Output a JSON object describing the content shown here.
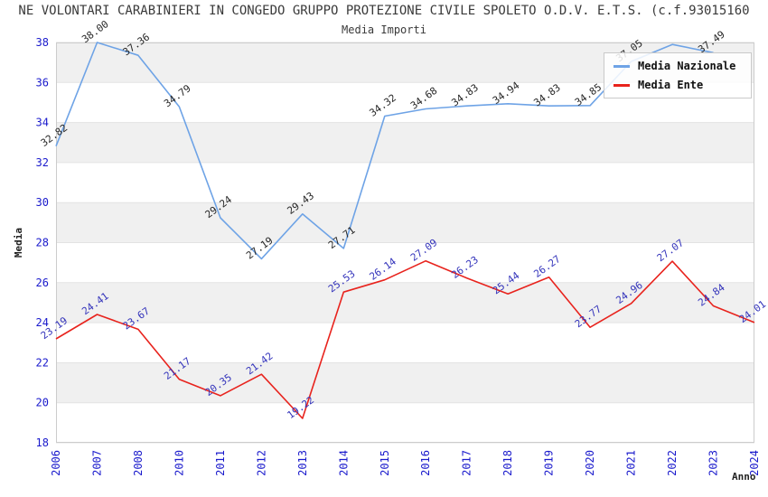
{
  "title": "NE VOLONTARI CARABINIERI IN CONGEDO GRUPPO PROTEZIONE CIVILE SPOLETO O.D.V. E.T.S. (c.f.93015160",
  "subtitle": "Media Importi",
  "axes": {
    "y_label": "Media",
    "x_label": "Anno",
    "y_ticks": [
      "18",
      "20",
      "22",
      "24",
      "26",
      "28",
      "30",
      "32",
      "34",
      "36",
      "38"
    ],
    "tick_color": "#1a1acc"
  },
  "colors": {
    "band": "#f0f0f0",
    "grid": "#e3e3e3",
    "spine": "#cccccc"
  },
  "legend": {
    "items": [
      {
        "label": "Media Nazionale",
        "color": "#6ea3e6"
      },
      {
        "label": "Media Ente",
        "color": "#e8231d"
      }
    ]
  },
  "chart_data": {
    "type": "line",
    "title": "Media Importi",
    "xlabel": "Anno",
    "ylabel": "Media",
    "ylim": [
      18,
      38
    ],
    "grid": "horizontal-bands",
    "legend_position": "top-right",
    "x": [
      "2006",
      "2007",
      "2008",
      "2010",
      "2011",
      "2012",
      "2013",
      "2014",
      "2015",
      "2016",
      "2017",
      "2018",
      "2019",
      "2020",
      "2021",
      "2022",
      "2023",
      "2024"
    ],
    "series": [
      {
        "name": "Media Nazionale",
        "color": "#6ea3e6",
        "label_color": "#262626",
        "values": [
          32.82,
          38.0,
          37.36,
          34.79,
          29.24,
          27.19,
          29.43,
          27.71,
          34.32,
          34.68,
          34.83,
          34.94,
          34.83,
          34.85,
          37.05,
          37.9,
          37.49,
          null
        ],
        "labels": [
          "32.82",
          "38.00",
          "37.36",
          "34.79",
          "29.24",
          "27.19",
          "29.43",
          "27.71",
          "34.32",
          "34.68",
          "34.83",
          "34.94",
          "34.83",
          "34.85",
          "37.05",
          "",
          "37.49",
          ""
        ]
      },
      {
        "name": "Media Ente",
        "color": "#e8231d",
        "label_color": "#3434bb",
        "values": [
          23.19,
          24.41,
          23.67,
          21.17,
          20.35,
          21.42,
          19.22,
          25.53,
          26.14,
          27.09,
          26.23,
          25.44,
          26.27,
          23.77,
          24.96,
          27.07,
          24.84,
          24.01
        ],
        "labels": [
          "23.19",
          "24.41",
          "23.67",
          "21.17",
          "20.35",
          "21.42",
          "19.22",
          "25.53",
          "26.14",
          "27.09",
          "26.23",
          "25.44",
          "26.27",
          "23.77",
          "24.96",
          "27.07",
          "24.84",
          "24.01"
        ]
      }
    ]
  }
}
